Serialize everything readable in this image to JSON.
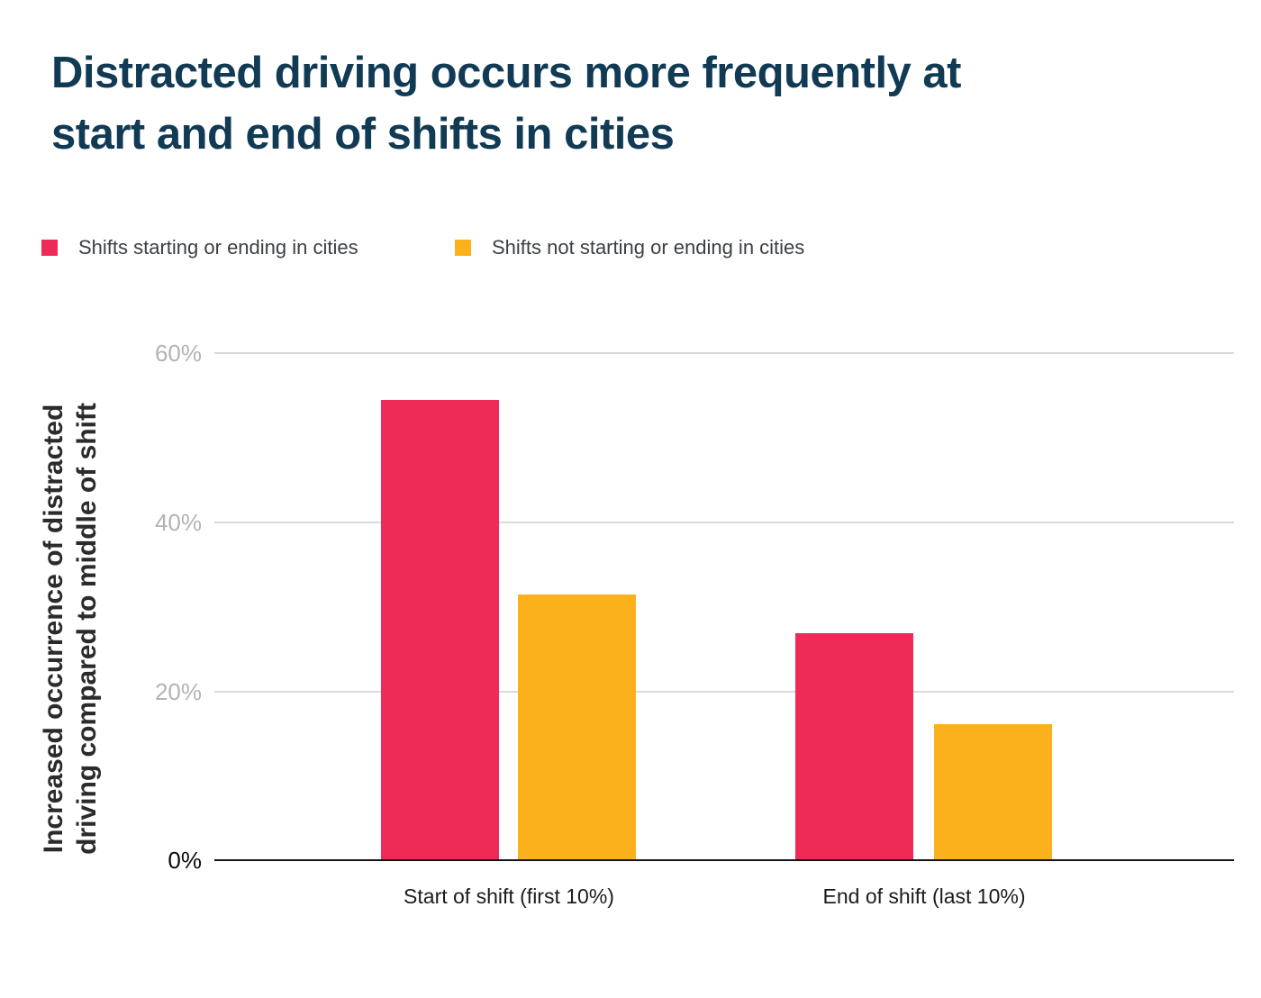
{
  "header": {
    "title_line1": "Distracted driving occurs more frequently at",
    "title_line2": "start and end of shifts in cities"
  },
  "colors": {
    "title": "#113a54",
    "series_cities": "#ee2b57",
    "series_non_cities": "#fbb11c",
    "gridline": "#dadada",
    "axis_line": "#141414",
    "tick_gray": "#b3b3b3",
    "tick_zero": "#0b0b0b",
    "legend_text": "#3c4043"
  },
  "chart_data": {
    "type": "bar",
    "title": "Distracted driving occurs more frequently at start and end of shifts in cities",
    "categories": [
      "Start of shift (first 10%)",
      "End of shift (last 10%)"
    ],
    "series": [
      {
        "name": "Shifts starting or ending in cities",
        "color": "#ee2b57",
        "values": [
          54.5,
          26.9
        ]
      },
      {
        "name": "Shifts not starting or ending in cities",
        "color": "#fbb11c",
        "values": [
          31.4,
          16.1
        ]
      }
    ],
    "xlabel": "",
    "ylabel": "Increased occurrence of distracted driving compared to middle of shift",
    "ylabel_lines": [
      "Increased occurrence of distracted",
      "driving compared to middle of shift"
    ],
    "ymin": 0,
    "ymax": 60,
    "yticks": [
      0,
      20,
      40,
      60
    ],
    "ytick_labels_top_to_bottom": [
      "60%",
      "40%",
      "20%",
      "0%"
    ],
    "grid": true,
    "legend_position": "top-left"
  }
}
